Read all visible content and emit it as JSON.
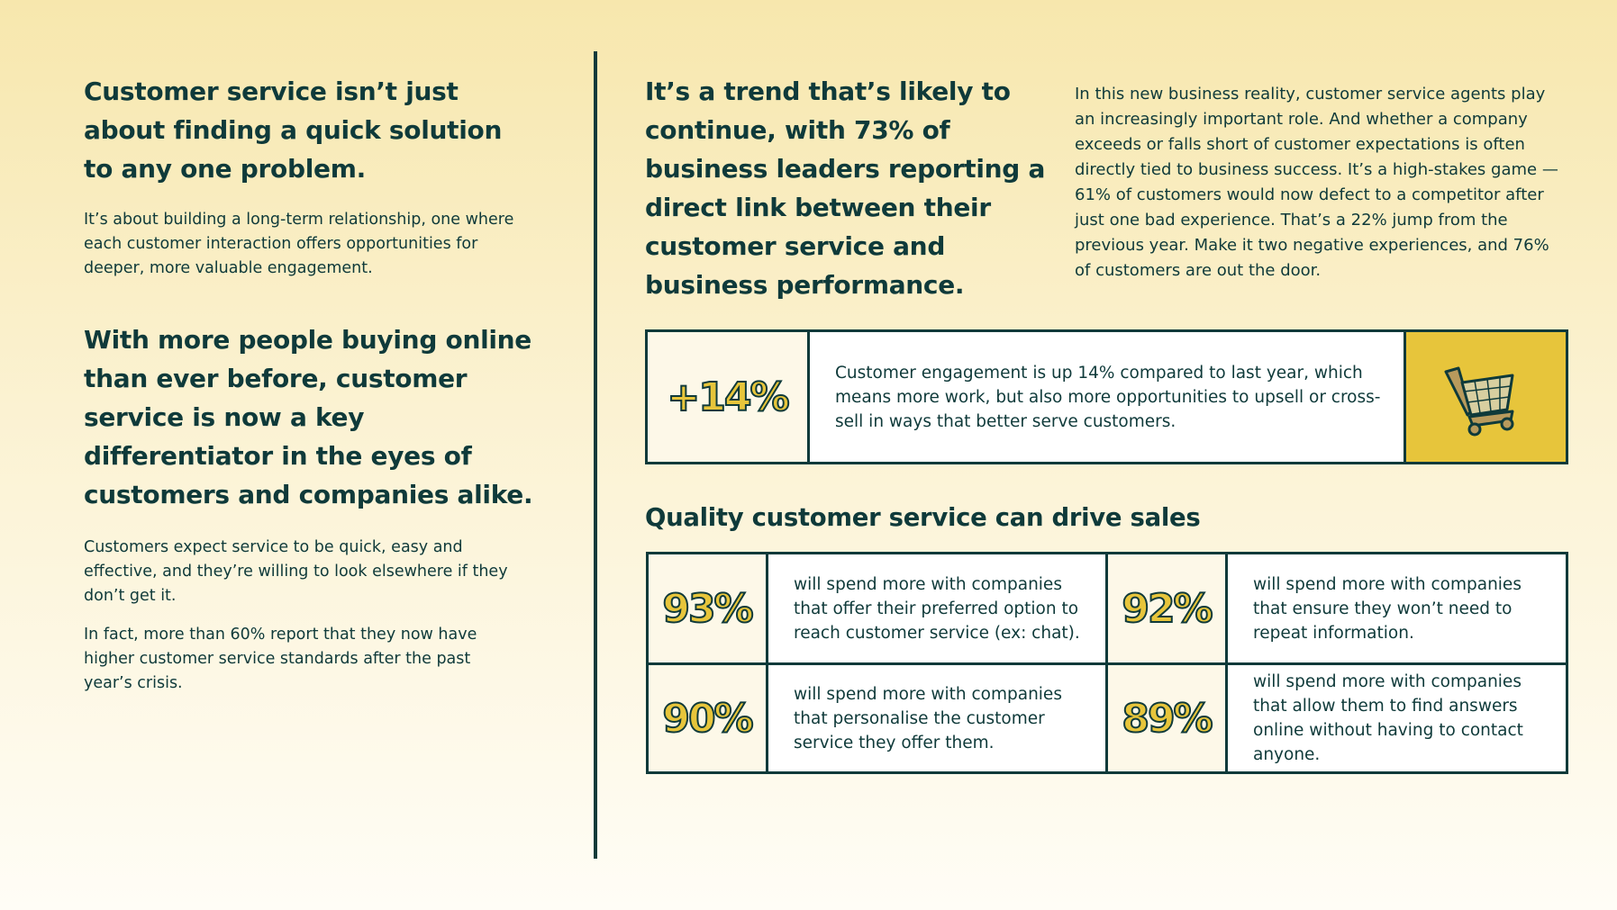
{
  "left": {
    "heading1": "Customer service isn’t just about finding a quick solution to any one problem.",
    "para1": "It’s about building a long-term relationship, one where each customer interaction offers opportunities for deeper, more valuable engagement.",
    "heading2": "With more people buying online than ever before, customer service is now a key differentiator in the eyes of customers and companies alike.",
    "para2": "Customers expect service to be quick, easy and effective, and they’re willing to look elsewhere if they don’t get it.",
    "para3": "In fact, more than 60% report that they now have higher customer service standards after the past year’s crisis."
  },
  "right": {
    "heading": "It’s a trend that’s likely to continue, with 73% of business leaders reporting a direct link between their customer service and business performance.",
    "paragraph": "In this new business reality, customer service agents play an increasingly important role. And whether a company exceeds or falls short of customer expectations is often directly tied to business success. It’s a high-stakes game — 61% of customers would now defect to a competitor after just one bad experience. That’s a 22% jump from the previous year. Make it two negative experiences, and 76% of customers are out the door."
  },
  "highlight": {
    "stat": "+14%",
    "text": "Customer engagement is up 14% compared to last year, which means more work, but also more opportunities to upsell or cross-sell in ways that better serve customers."
  },
  "stats": {
    "title": "Quality customer service can drive sales",
    "items": [
      {
        "value": "93%",
        "text": "will spend more with companies that offer their preferred option to reach customer service (ex: chat)."
      },
      {
        "value": "92%",
        "text": "will spend more with companies that ensure they won’t need to repeat information."
      },
      {
        "value": "90%",
        "text": "will spend more with companies that personalise the customer service they offer them."
      },
      {
        "value": "89%",
        "text": "will spend more with companies that allow them to find answers online without having to contact anyone."
      }
    ]
  }
}
